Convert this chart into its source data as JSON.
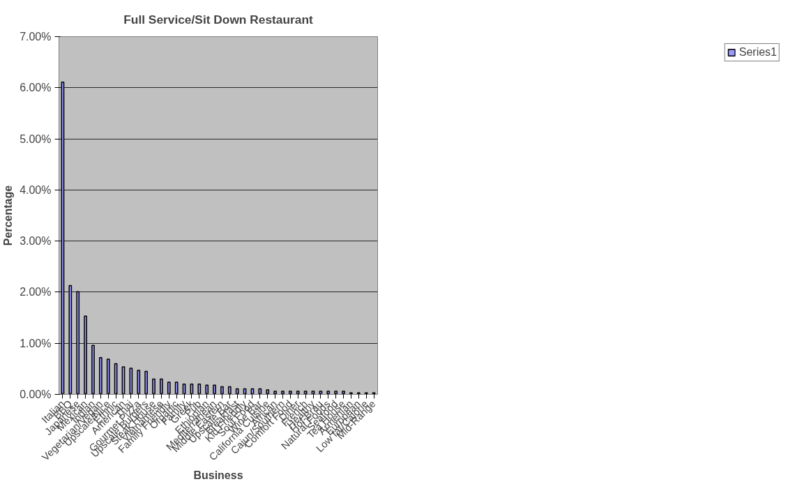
{
  "chart_data": {
    "type": "bar",
    "title": "Full Service/Sit Down Restaurant",
    "xlabel": "Business",
    "ylabel": "Percentage",
    "categories": [
      "Italian",
      "BBQ",
      "Japanese",
      "Mexican",
      "Indian",
      "Vegetarian/Vegan",
      "Upscale/Nice",
      "Ethnic",
      "American",
      "Thai",
      "Gourmet Pizza",
      "Upscale Burgers",
      "Steak House",
      "Vietnamese",
      "Family Friendly",
      "Organic",
      "Family",
      "Greek",
      "Pub",
      "Ethiopian",
      "Mediterranean",
      "Middle Eastern",
      "Upscale Bar",
      "Breakfast",
      "Kid Friendly",
      "Soul Food",
      "Wine Bar",
      "California Cuisine",
      "African",
      "Cajun/Southern",
      "Comfort Food",
      "Diner",
      "French",
      "Healthy",
      "Hof-Brau",
      "Natural Foods",
      "Seafood",
      "Tea House",
      "Armenian",
      "European",
      "Low fat/Calorie",
      "Mid-Range"
    ],
    "series": [
      {
        "name": "Series1",
        "color": "#9999ff",
        "values": [
          6.11,
          2.13,
          2.01,
          1.53,
          0.96,
          0.72,
          0.69,
          0.6,
          0.54,
          0.51,
          0.47,
          0.45,
          0.3,
          0.3,
          0.24,
          0.24,
          0.2,
          0.2,
          0.2,
          0.18,
          0.18,
          0.15,
          0.15,
          0.11,
          0.11,
          0.11,
          0.11,
          0.09,
          0.06,
          0.06,
          0.06,
          0.06,
          0.06,
          0.06,
          0.06,
          0.06,
          0.06,
          0.06,
          0.03,
          0.03,
          0.03,
          0.03
        ]
      }
    ],
    "ylim": [
      0,
      7
    ],
    "yticks": [
      {
        "value": 0,
        "label": "0.00%"
      },
      {
        "value": 1,
        "label": "1.00%"
      },
      {
        "value": 2,
        "label": "2.00%"
      },
      {
        "value": 3,
        "label": "3.00%"
      },
      {
        "value": 4,
        "label": "4.00%"
      },
      {
        "value": 5,
        "label": "5.00%"
      },
      {
        "value": 6,
        "label": "6.00%"
      },
      {
        "value": 7,
        "label": "7.00%"
      }
    ],
    "grid": "y",
    "legend": "right"
  }
}
